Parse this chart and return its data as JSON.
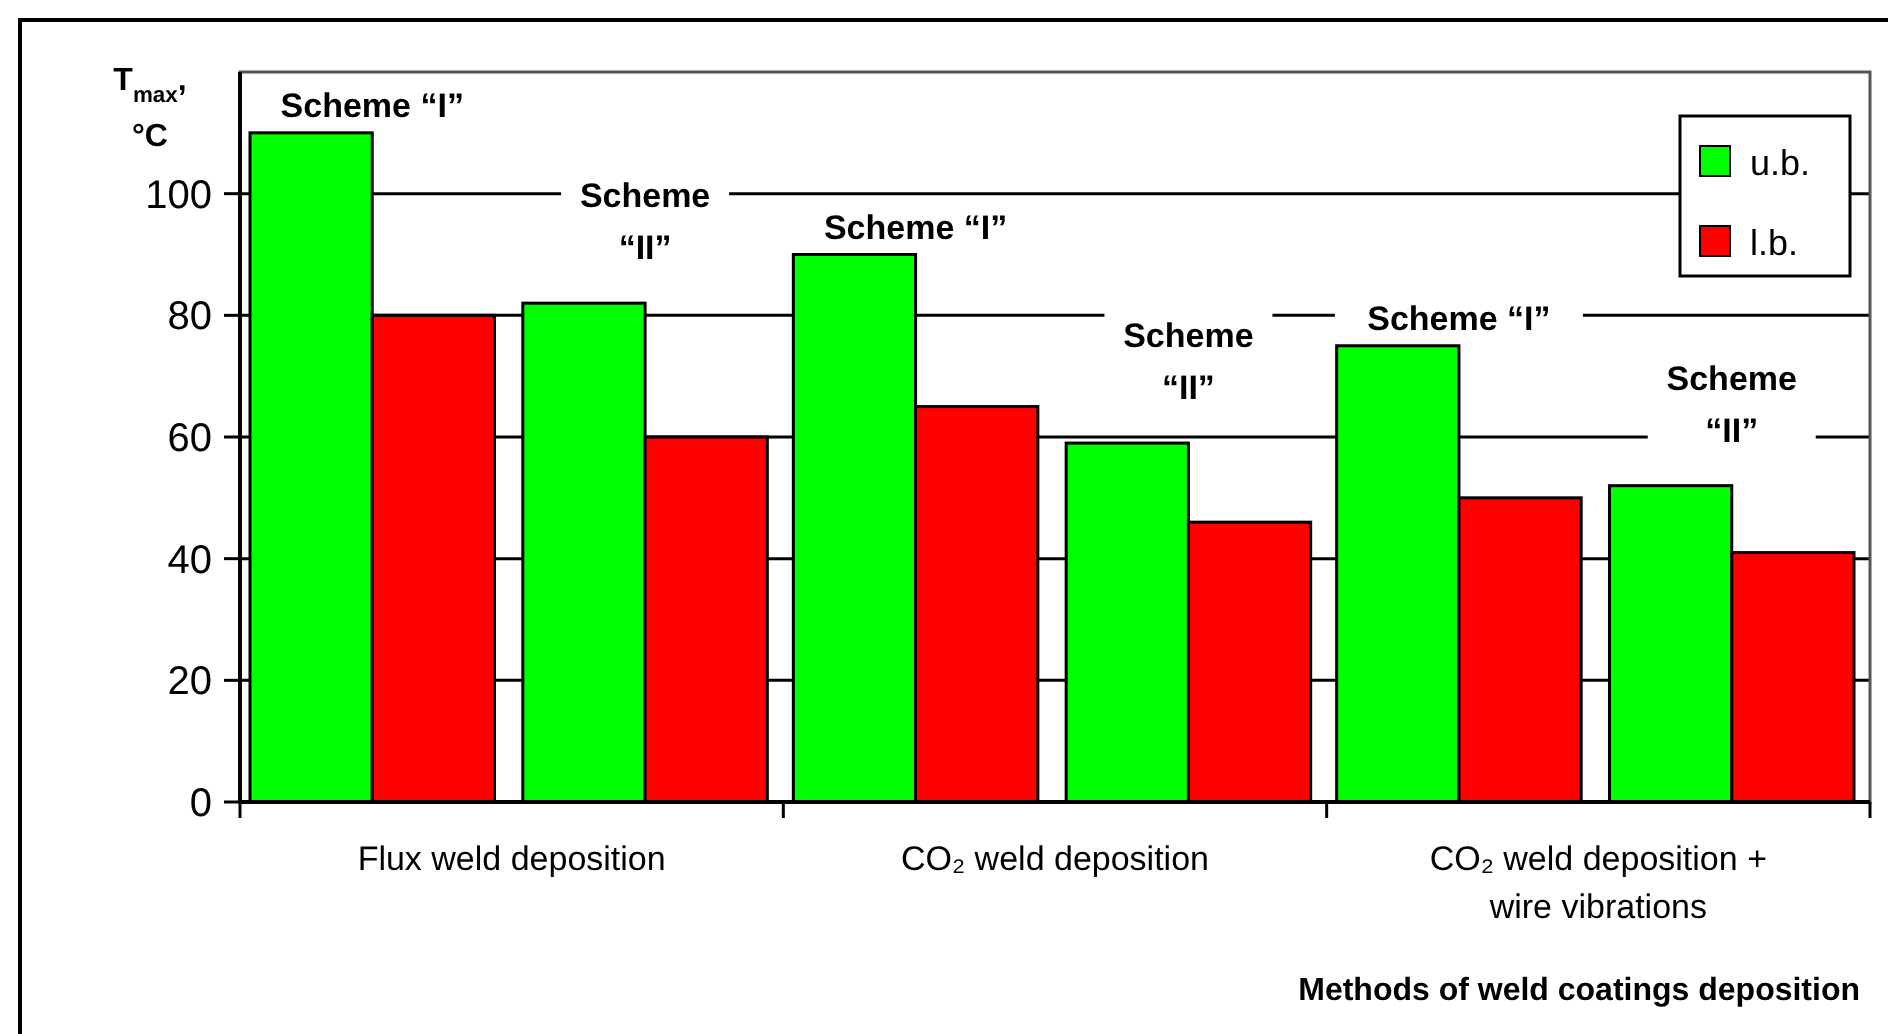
{
  "chart_data": {
    "type": "bar",
    "ylabel": "T$_{max}$,\n°C",
    "xlabel": "Methods of weld coatings deposition",
    "categories": [
      "Flux weld deposition",
      "CO₂ weld deposition",
      "CO₂ weld deposition + wire vibrations"
    ],
    "series": [
      {
        "name": "u.b.",
        "color": "#00ff00",
        "values": [
          110,
          90,
          75
        ]
      },
      {
        "name": "l.b.",
        "color": "#ff0000",
        "values": [
          80,
          65,
          50
        ]
      },
      {
        "color": "#00ff00",
        "values": [
          82,
          59,
          52
        ]
      },
      {
        "color": "#ff0000",
        "values": [
          60,
          46,
          41
        ]
      }
    ],
    "ylim": [
      0,
      120
    ],
    "yticks": [
      0,
      20,
      40,
      60,
      80,
      100
    ],
    "grid": "y",
    "legend": "top right",
    "annotations": [
      "Scheme “I”",
      "Scheme\n“II”",
      "Scheme “I”",
      "Scheme\n“II”",
      "Scheme “I”",
      "Scheme\n“II”"
    ]
  }
}
